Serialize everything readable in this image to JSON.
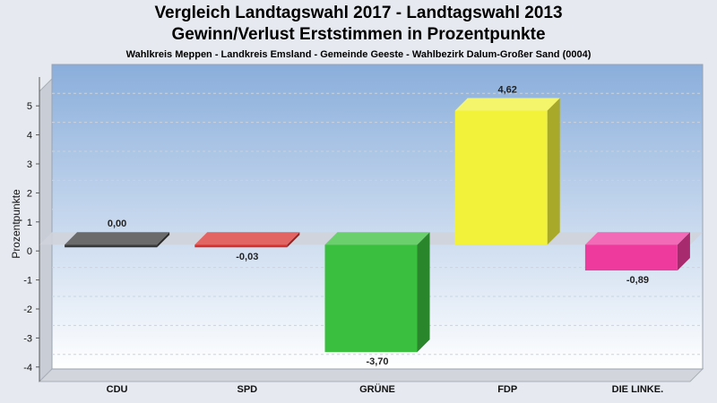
{
  "title_lines": [
    "Vergleich Landtagswahl 2017 - Landtagswahl 2013",
    "Gewinn/Verlust Erststimmen in Prozentpunkte"
  ],
  "subtitle": "Wahlkreis Meppen - Landkreis Emsland - Gemeinde Geeste - Wahlbezirk Dalum-Großer Sand (0004)",
  "chart_data": {
    "type": "bar",
    "title": "Vergleich Landtagswahl 2017 - Landtagswahl 2013 Gewinn/Verlust Erststimmen in Prozentpunkte",
    "subtitle": "Wahlkreis Meppen - Landkreis Emsland - Gemeinde Geeste - Wahlbezirk Dalum-Großer Sand (0004)",
    "ylabel": "Prozentpunkte",
    "xlabel": "",
    "ylim": [
      -4.5,
      5.5
    ],
    "yticks": [
      5,
      4,
      3,
      2,
      1,
      0,
      -1,
      -2,
      -3,
      -4
    ],
    "grid": true,
    "categories": [
      "CDU",
      "SPD",
      "GRÜNE",
      "FDP",
      "DIE LINKE."
    ],
    "values": [
      0.0,
      -0.03,
      -3.7,
      4.62,
      -0.89
    ],
    "value_labels": [
      "0,00",
      "-0,03",
      "-3,70",
      "4,62",
      "-0,89"
    ],
    "colors": [
      "#3a3a3a",
      "#d8302f",
      "#3bbf3e",
      "#f2f23a",
      "#ee3a9d"
    ]
  }
}
